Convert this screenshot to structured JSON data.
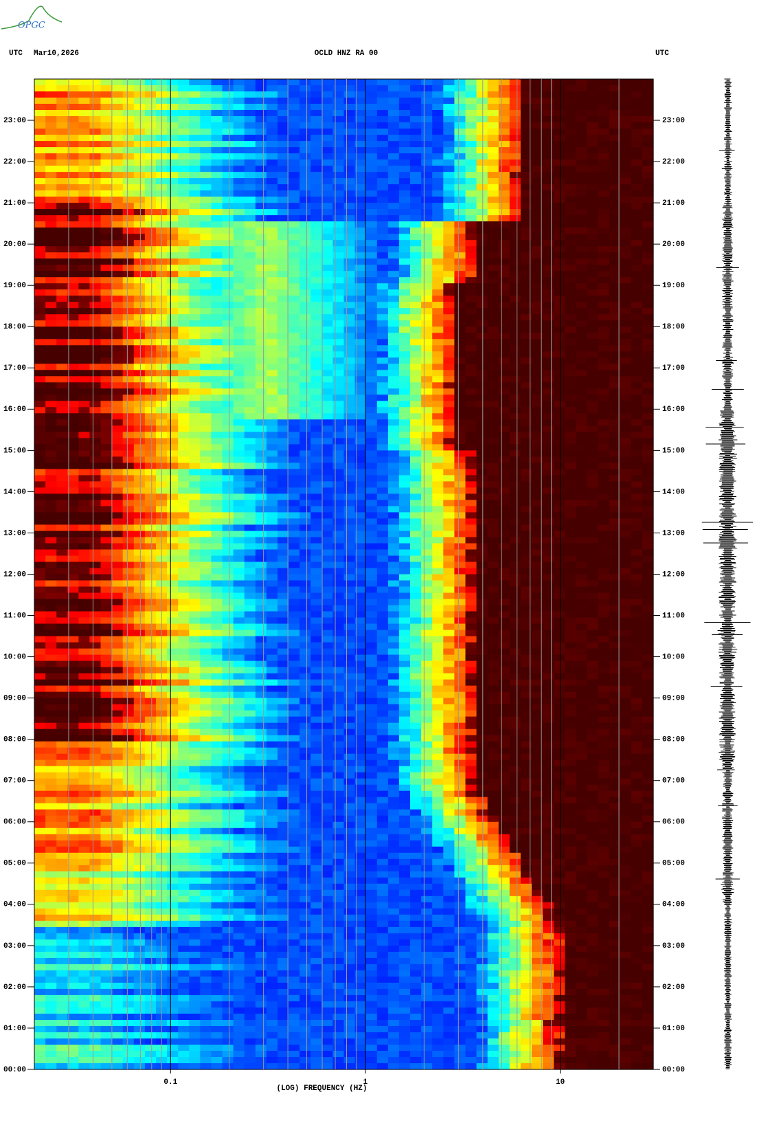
{
  "chart_data": {
    "type": "spectrogram",
    "logo": "OPGC",
    "time_zone": "UTC",
    "date": "Mar10,2026",
    "title": "OCLD HNZ RA 00",
    "x_label": "(LOG) FREQUENCY (HZ)",
    "log_x": true,
    "xlim": [
      0.02,
      30
    ],
    "xticks": [
      0.1,
      1,
      10
    ],
    "minor_xticks": [
      0.03,
      0.04,
      0.05,
      0.06,
      0.07,
      0.08,
      0.09,
      0.2,
      0.3,
      0.4,
      0.5,
      0.6,
      0.7,
      0.8,
      0.9,
      2,
      3,
      4,
      5,
      6,
      7,
      8,
      9,
      20
    ],
    "ylim": [
      0,
      24
    ],
    "yticks": [
      {
        "value": 0,
        "label": "00:00"
      },
      {
        "value": 1,
        "label": "01:00"
      },
      {
        "value": 2,
        "label": "02:00"
      },
      {
        "value": 3,
        "label": "03:00"
      },
      {
        "value": 4,
        "label": "04:00"
      },
      {
        "value": 5,
        "label": "05:00"
      },
      {
        "value": 6,
        "label": "06:00"
      },
      {
        "value": 7,
        "label": "07:00"
      },
      {
        "value": 8,
        "label": "08:00"
      },
      {
        "value": 9,
        "label": "09:00"
      },
      {
        "value": 10,
        "label": "10:00"
      },
      {
        "value": 11,
        "label": "11:00"
      },
      {
        "value": 12,
        "label": "12:00"
      },
      {
        "value": 13,
        "label": "13:00"
      },
      {
        "value": 14,
        "label": "14:00"
      },
      {
        "value": 15,
        "label": "15:00"
      },
      {
        "value": 16,
        "label": "16:00"
      },
      {
        "value": 17,
        "label": "17:00"
      },
      {
        "value": 18,
        "label": "18:00"
      },
      {
        "value": 19,
        "label": "19:00"
      },
      {
        "value": 20,
        "label": "20:00"
      },
      {
        "value": 21,
        "label": "21:00"
      },
      {
        "value": 22,
        "label": "22:00"
      },
      {
        "value": 23,
        "label": "23:00"
      }
    ]
  }
}
